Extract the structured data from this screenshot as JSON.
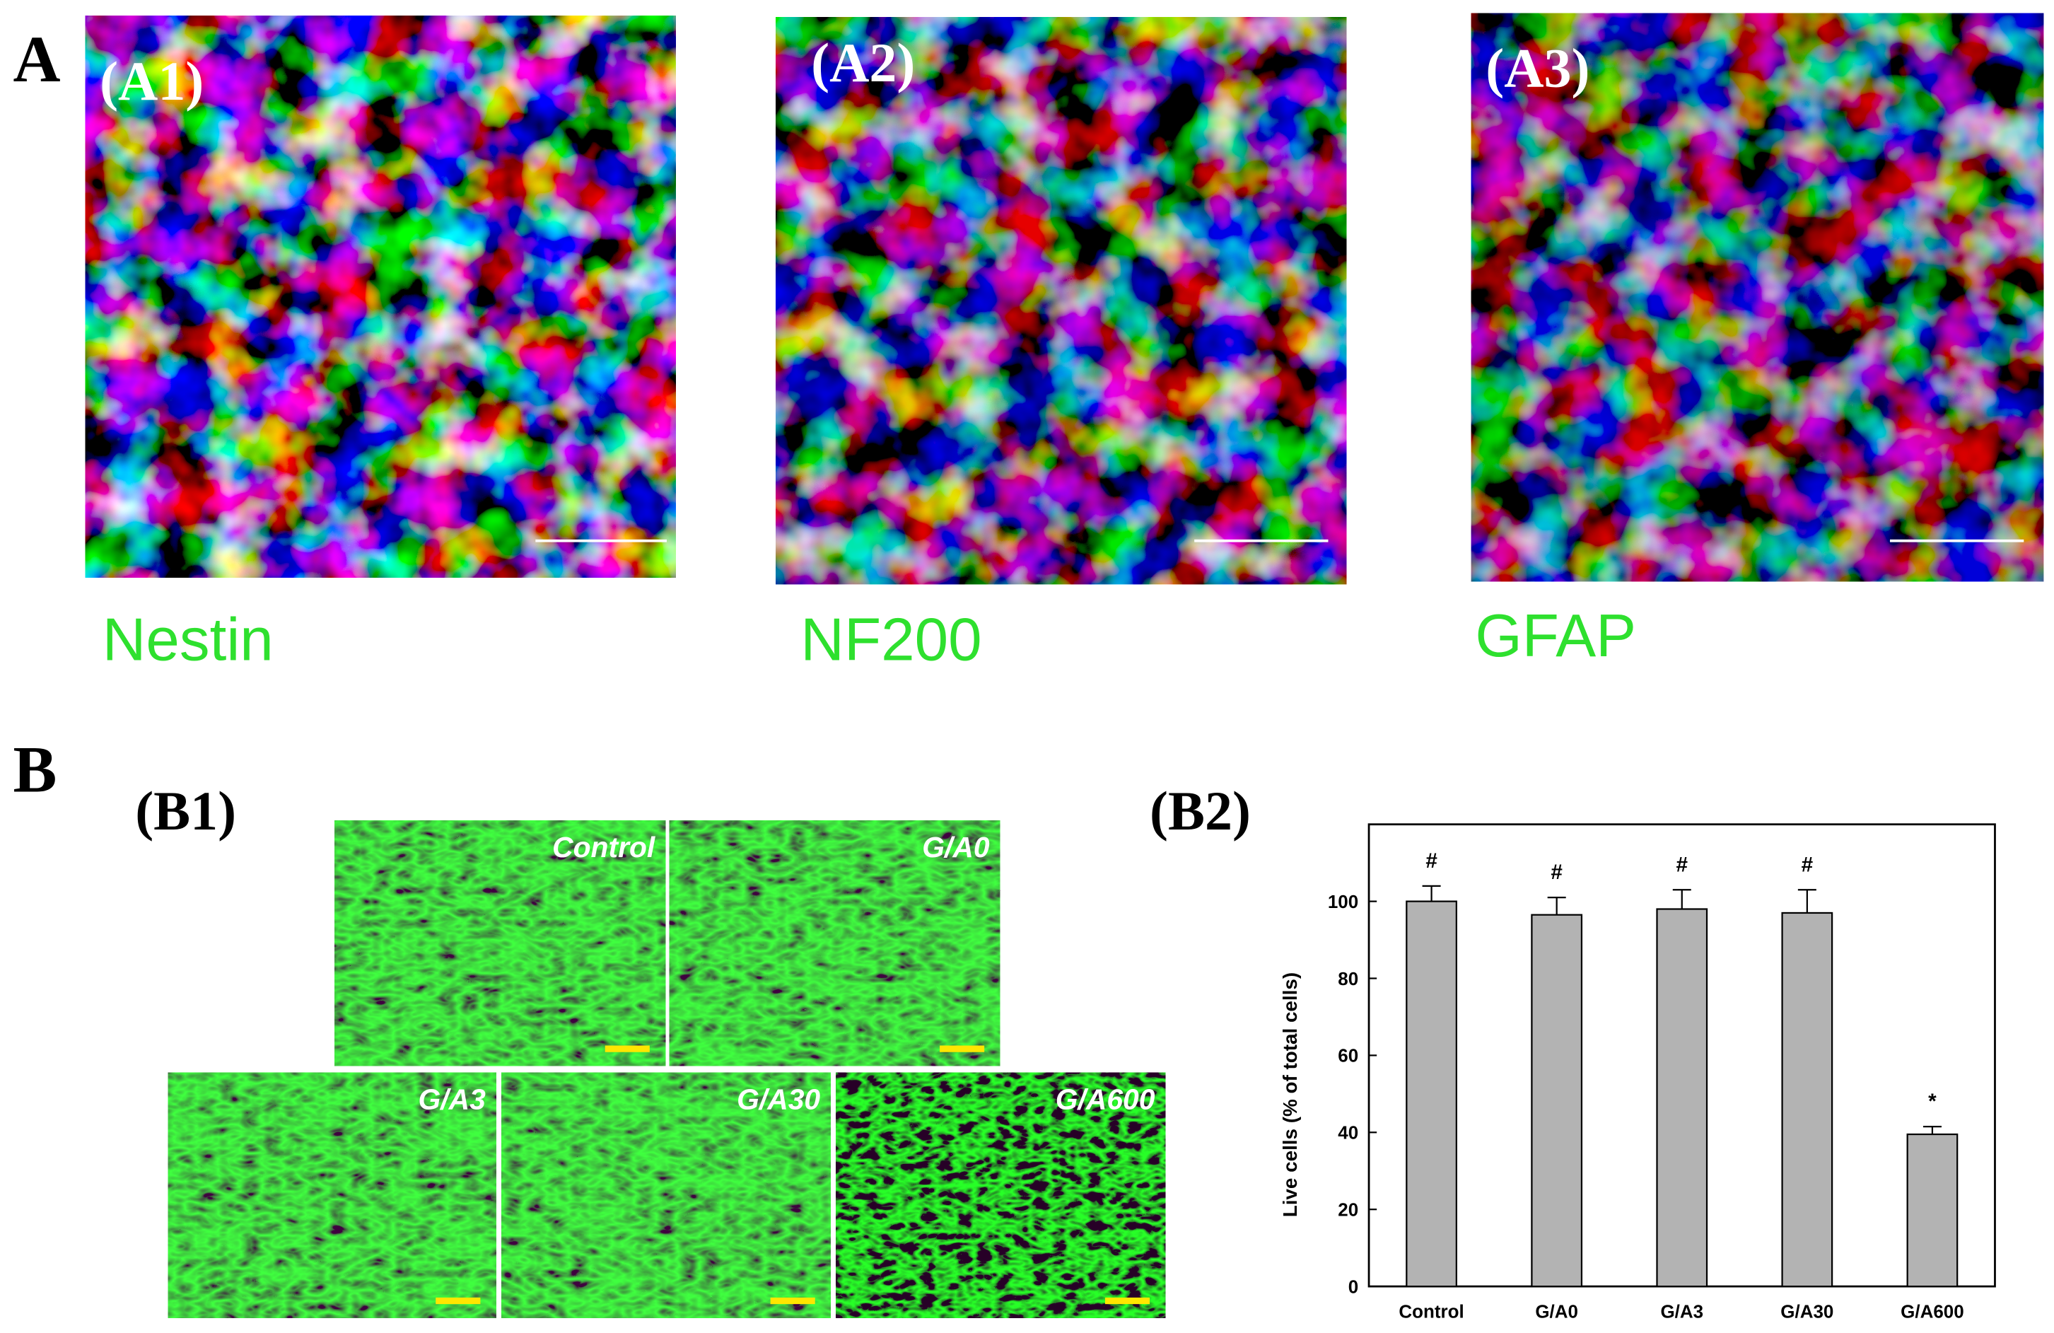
{
  "figure": {
    "panel_a": {
      "label": "A",
      "images": [
        {
          "label": "(A1)",
          "marker": "Nestin"
        },
        {
          "label": "(A2)",
          "marker": "NF200"
        },
        {
          "label": "(A3)",
          "marker": "GFAP"
        }
      ]
    },
    "panel_b": {
      "label": "B",
      "b1_label": "(B1)",
      "b2_label": "(B2)",
      "tiles": [
        "Control",
        "G/A0",
        "G/A3",
        "G/A30",
        "G/A600"
      ]
    }
  },
  "chart_data": {
    "type": "bar",
    "y_label": "Live cells (% of total cells)",
    "categories": [
      "Control",
      "G/A0",
      "G/A3",
      "G/A30",
      "G/A600"
    ],
    "values": [
      100,
      96.5,
      98,
      97,
      39.5
    ],
    "errors": [
      4,
      4.5,
      5,
      6,
      2
    ],
    "annotations": [
      "#",
      "#",
      "#",
      "#",
      "*"
    ],
    "color": "#b3b3b3",
    "ylim": [
      0,
      120
    ],
    "yticks": [
      0,
      20,
      40,
      60,
      80,
      100
    ]
  }
}
